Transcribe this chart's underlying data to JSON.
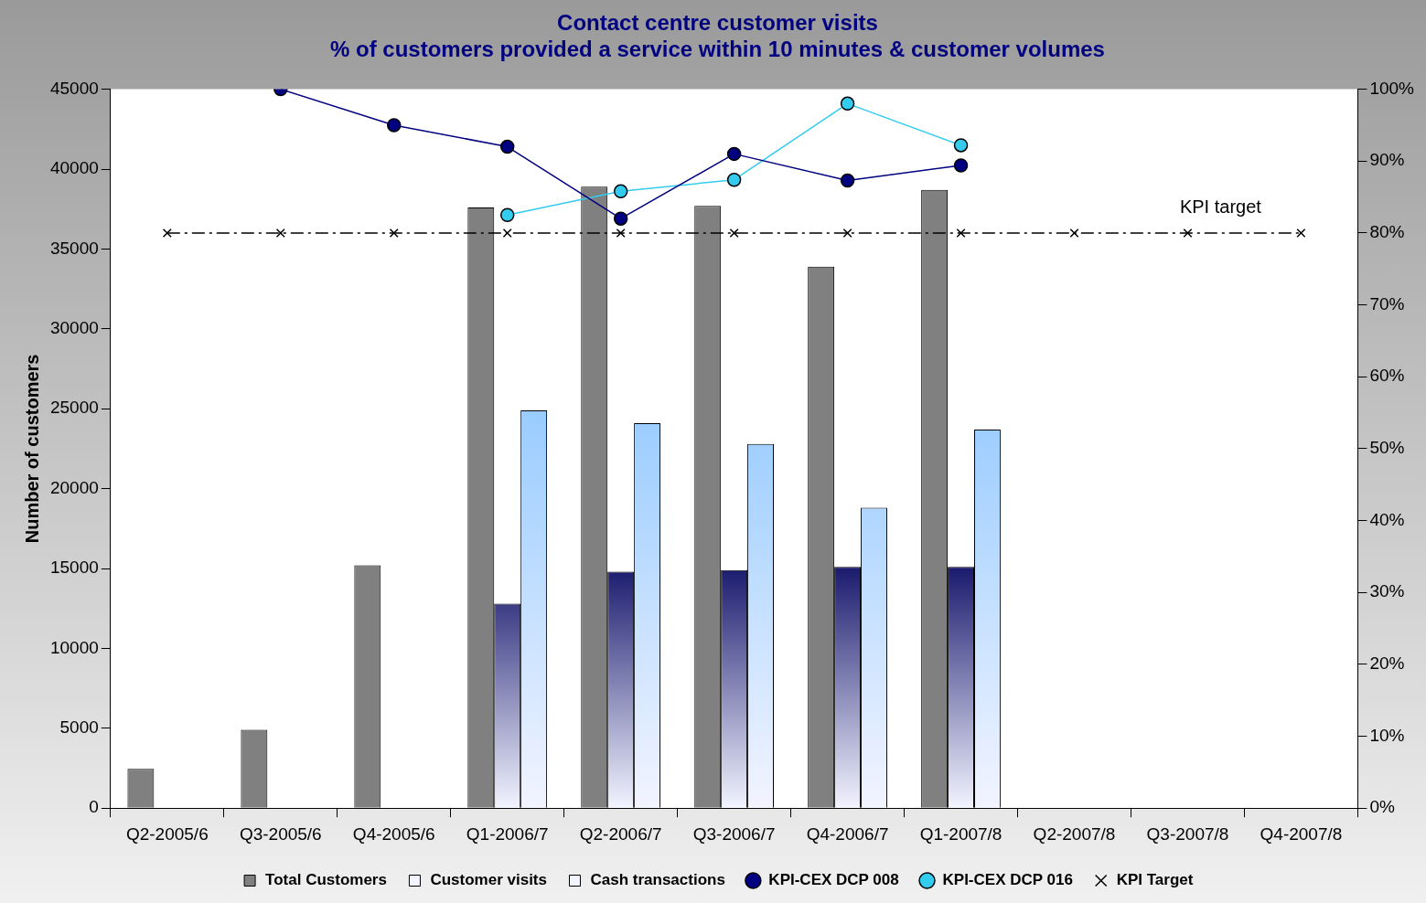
{
  "chart_data": {
    "type": "bar",
    "title": "Contact centre customer visits",
    "subtitle": "% of customers provided a service within 10 minutes & customer volumes",
    "ylabel": "Number of customers",
    "categories": [
      "Q2-2005/6",
      "Q3-2005/6",
      "Q4-2005/6",
      "Q1-2006/7",
      "Q2-2006/7",
      "Q3-2006/7",
      "Q4-2006/7",
      "Q1-2007/8",
      "Q2-2007/8",
      "Q3-2007/8",
      "Q4-2007/8"
    ],
    "series": [
      {
        "name": "Total Customers",
        "type": "bar",
        "color": "#808080",
        "values": [
          2450,
          4900,
          15200,
          37600,
          38900,
          37700,
          33900,
          38700,
          null,
          null,
          null
        ]
      },
      {
        "name": "Customer visits",
        "type": "bar",
        "color": "#1a1a6e",
        "values": [
          null,
          null,
          null,
          12800,
          14800,
          14900,
          15100,
          15100,
          null,
          null,
          null
        ]
      },
      {
        "name": "Cash transactions",
        "type": "bar",
        "color": "#99ccff",
        "values": [
          null,
          null,
          null,
          24900,
          24100,
          22800,
          18800,
          23700,
          null,
          null,
          null
        ]
      },
      {
        "name": "KPI-CEX DCP 008",
        "type": "line",
        "axis": "y2",
        "color": "#000080",
        "marker": "circle",
        "line_style": "solid",
        "values": [
          null,
          100,
          95,
          92,
          82,
          91,
          87.3,
          89.4,
          null,
          null,
          null
        ]
      },
      {
        "name": "KPI-CEX DCP 016",
        "type": "line",
        "axis": "y2",
        "color": "#33ccee",
        "marker": "circle",
        "line_style": "solid",
        "values": [
          null,
          null,
          null,
          82.5,
          85.8,
          87.4,
          98,
          92.2,
          null,
          null,
          null
        ]
      },
      {
        "name": "KPI Target",
        "type": "line",
        "axis": "y2",
        "color": "#000000",
        "marker": "cross",
        "line_style": "dashed",
        "values": [
          80,
          80,
          80,
          80,
          80,
          80,
          80,
          80,
          80,
          80,
          80
        ]
      }
    ],
    "ylim": [
      0,
      45000
    ],
    "yticks": [
      0,
      5000,
      10000,
      15000,
      20000,
      25000,
      30000,
      35000,
      40000,
      45000
    ],
    "y2lim": [
      0,
      100
    ],
    "y2ticks": [
      {
        "value": 0,
        "label": "0%"
      },
      {
        "value": 10,
        "label": "10%"
      },
      {
        "value": 20,
        "label": "20%"
      },
      {
        "value": 30,
        "label": "30%"
      },
      {
        "value": 40,
        "label": "40%"
      },
      {
        "value": 50,
        "label": "50%"
      },
      {
        "value": 60,
        "label": "60%"
      },
      {
        "value": 70,
        "label": "70%"
      },
      {
        "value": 80,
        "label": "80%"
      },
      {
        "value": 90,
        "label": "90%"
      },
      {
        "value": 100,
        "label": "100%"
      }
    ],
    "annotations": [
      "KPI target"
    ],
    "legend": "bottom",
    "grid": false
  }
}
